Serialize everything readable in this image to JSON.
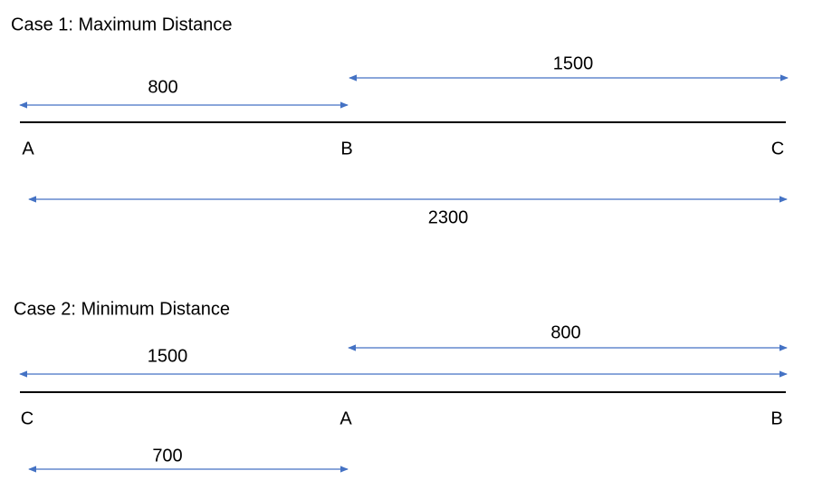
{
  "cases": [
    {
      "title": "Case 1: Maximum Distance",
      "points": [
        "A",
        "B",
        "C"
      ],
      "distances": [
        800,
        1500,
        2300
      ]
    },
    {
      "title": "Case 2: Minimum Distance",
      "points": [
        "C",
        "A",
        "B"
      ],
      "distances": [
        800,
        1500,
        700
      ]
    }
  ]
}
